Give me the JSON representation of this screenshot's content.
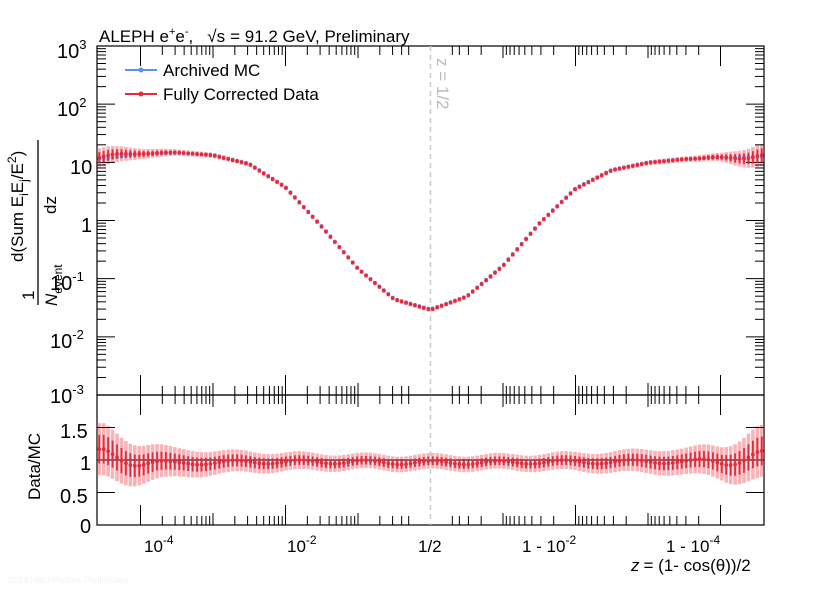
{
  "chart_data": {
    "type": "line",
    "title": "ALEPH e+e-,  √s = 91.2 GeV, Preliminary",
    "title_parts": {
      "experiment": "ALEPH e",
      "plus": "+",
      "e": "e",
      "minus": "-",
      "comma": ",",
      "sqrt": "√s",
      "energy": "= 91.2 GeV, Preliminary"
    },
    "xlabel": "z = (1- cos(θ))/2",
    "xlabel_parts": {
      "z": "z",
      "rest": "= (1- cos(θ))/2"
    },
    "ylabel": "1/N_event d(Sum E_i E_j/E^2)/dz",
    "ylabel_parts": {
      "one": "1",
      "n": "N",
      "event": "event",
      "d": "d(Sum E",
      "i": "i",
      "e": "E",
      "j": "j",
      "e2": "/E",
      "two": "2",
      "close": ")",
      "dz": "dz"
    },
    "ratio_ylabel": "Data/MC",
    "annotation": "z = 1/2",
    "watermark": "2024 Hard Probes Preliminary",
    "x_scale": "double-log (log z below 1/2, log(1-z) above 1/2)",
    "x_ticks": [
      {
        "base": "10",
        "exp": "-4"
      },
      {
        "base": "10",
        "exp": "-2"
      },
      {
        "base": "1/2",
        "exp": ""
      },
      {
        "base": "1 - 10",
        "exp": "-2"
      },
      {
        "base": "1 - 10",
        "exp": "-4"
      }
    ],
    "y_ticks": [
      {
        "base": "10",
        "exp": "3"
      },
      {
        "base": "10",
        "exp": "2"
      },
      {
        "base": "10",
        "exp": ""
      },
      {
        "base": "1",
        "exp": ""
      },
      {
        "base": "10",
        "exp": "-1"
      },
      {
        "base": "10",
        "exp": "-2"
      },
      {
        "base": "10",
        "exp": "-3"
      }
    ],
    "ratio_y_ticks": [
      "1.5",
      "1",
      "0.5",
      "0"
    ],
    "ylim": [
      0.001,
      1000
    ],
    "ratio_ylim": [
      0,
      2
    ],
    "legend": {
      "placement": "top-left",
      "entries": [
        "Archived MC",
        "Fully Corrected Data"
      ]
    },
    "colors": {
      "mc": "#5b8ff0",
      "data": "#e8283c",
      "band": "#f7b3b8",
      "midline": "#cccccc"
    },
    "x_index": [
      -4.5,
      -4.0,
      -3.5,
      -3.0,
      -2.5,
      -2.0,
      -1.5,
      -1.0,
      -0.5,
      0.0,
      0.5,
      1.0,
      1.5,
      2.0,
      2.5,
      3.0,
      3.5,
      4.0,
      4.5
    ],
    "x_description": "u coordinate: u<0 means z = 10^u ... mapped so u=-4 is z=1e-4, u=0 is z=1/2, u=+4 is z=1-1e-4",
    "series": [
      {
        "name": "Archived MC",
        "values": [
          11.5,
          14.0,
          14.5,
          13.5,
          9.5,
          3.8,
          0.8,
          0.15,
          0.045,
          0.03,
          0.05,
          0.17,
          0.9,
          3.6,
          7.5,
          10.0,
          11.5,
          12.0,
          12.5
        ]
      },
      {
        "name": "Fully Corrected Data",
        "values": [
          12.0,
          14.5,
          14.8,
          13.2,
          9.3,
          3.7,
          0.78,
          0.148,
          0.044,
          0.029,
          0.049,
          0.165,
          0.88,
          3.5,
          7.3,
          9.8,
          11.3,
          12.0,
          13.0
        ],
        "rel_errors": [
          0.5,
          0.25,
          0.15,
          0.12,
          0.11,
          0.1,
          0.1,
          0.1,
          0.1,
          0.1,
          0.1,
          0.1,
          0.1,
          0.1,
          0.1,
          0.12,
          0.13,
          0.2,
          0.6
        ]
      }
    ],
    "ratio": {
      "values": [
        1.05,
        0.97,
        0.95,
        0.96,
        0.97,
        0.97,
        0.97,
        0.97,
        0.96,
        0.96,
        0.96,
        0.96,
        0.97,
        0.97,
        0.97,
        0.98,
        0.97,
        0.99,
        1.02
      ],
      "band_half_width": [
        0.4,
        0.3,
        0.22,
        0.18,
        0.16,
        0.14,
        0.13,
        0.12,
        0.12,
        0.12,
        0.12,
        0.12,
        0.13,
        0.14,
        0.16,
        0.18,
        0.2,
        0.25,
        0.4
      ]
    }
  }
}
